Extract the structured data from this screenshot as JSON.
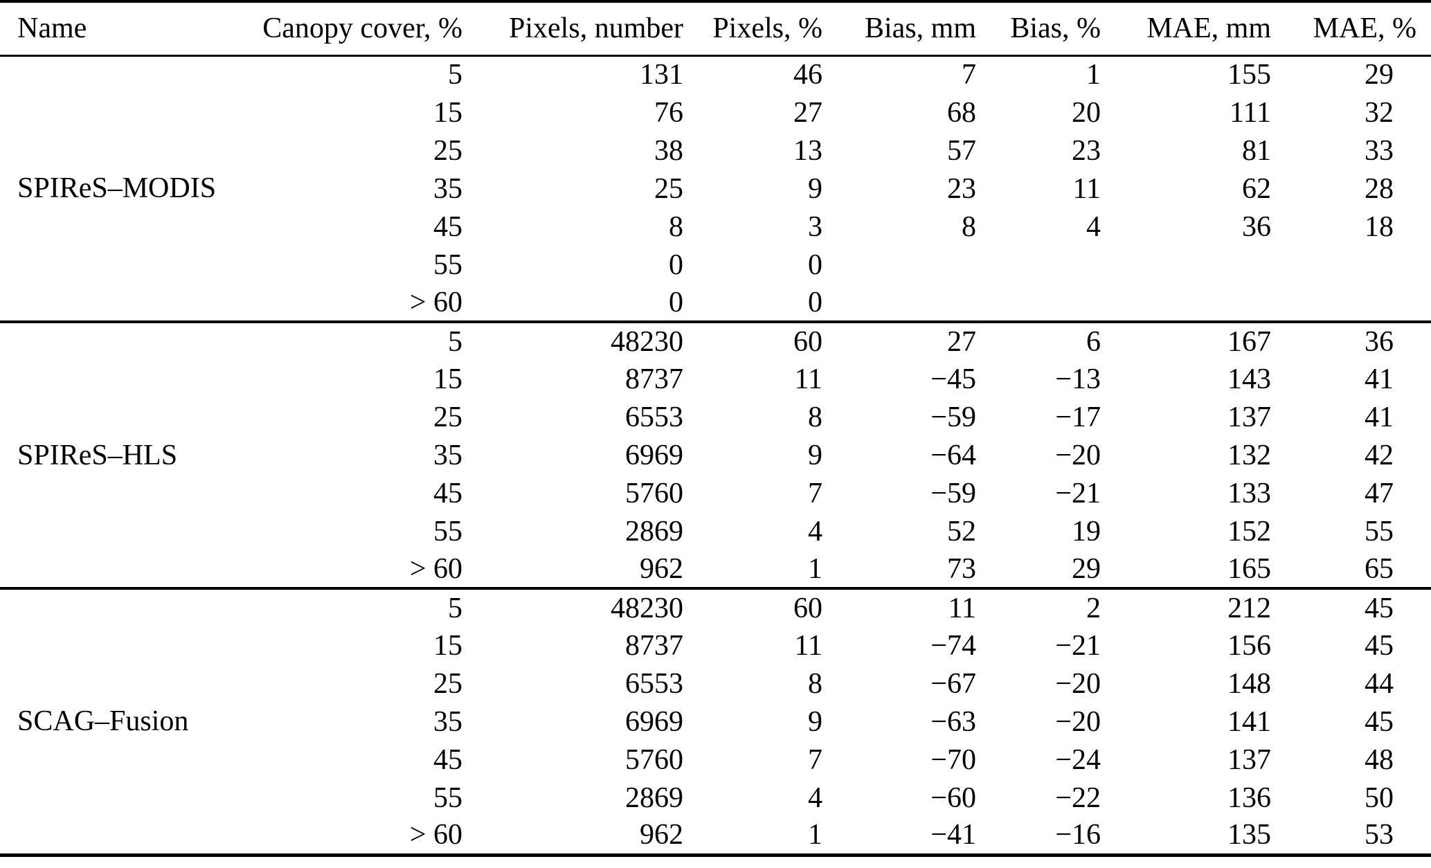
{
  "table": {
    "headers": [
      {
        "label": "Name"
      },
      {
        "label": "Canopy cover, %"
      },
      {
        "label": "Pixels, number"
      },
      {
        "label": "Pixels, %"
      },
      {
        "label": "Bias, mm"
      },
      {
        "label": "Bias, %"
      },
      {
        "label": "MAE, mm"
      },
      {
        "label": "MAE, %"
      }
    ],
    "groups": [
      {
        "name": "SPIReS–MODIS",
        "rows": [
          [
            "5",
            "131",
            "46",
            "7",
            "1",
            "155",
            "29"
          ],
          [
            "15",
            "76",
            "27",
            "68",
            "20",
            "111",
            "32"
          ],
          [
            "25",
            "38",
            "13",
            "57",
            "23",
            "81",
            "33"
          ],
          [
            "35",
            "25",
            "9",
            "23",
            "11",
            "62",
            "28"
          ],
          [
            "45",
            "8",
            "3",
            "8",
            "4",
            "36",
            "18"
          ],
          [
            "55",
            "0",
            "0",
            "",
            "",
            "",
            ""
          ],
          [
            "> 60",
            "0",
            "0",
            "",
            "",
            "",
            ""
          ]
        ]
      },
      {
        "name": "SPIReS–HLS",
        "rows": [
          [
            "5",
            "48230",
            "60",
            "27",
            "6",
            "167",
            "36"
          ],
          [
            "15",
            "8737",
            "11",
            "−45",
            "−13",
            "143",
            "41"
          ],
          [
            "25",
            "6553",
            "8",
            "−59",
            "−17",
            "137",
            "41"
          ],
          [
            "35",
            "6969",
            "9",
            "−64",
            "−20",
            "132",
            "42"
          ],
          [
            "45",
            "5760",
            "7",
            "−59",
            "−21",
            "133",
            "47"
          ],
          [
            "55",
            "2869",
            "4",
            "52",
            "19",
            "152",
            "55"
          ],
          [
            "> 60",
            "962",
            "1",
            "73",
            "29",
            "165",
            "65"
          ]
        ]
      },
      {
        "name": "SCAG–Fusion",
        "rows": [
          [
            "5",
            "48230",
            "60",
            "11",
            "2",
            "212",
            "45"
          ],
          [
            "15",
            "8737",
            "11",
            "−74",
            "−21",
            "156",
            "45"
          ],
          [
            "25",
            "6553",
            "8",
            "−67",
            "−20",
            "148",
            "44"
          ],
          [
            "35",
            "6969",
            "9",
            "−63",
            "−20",
            "141",
            "45"
          ],
          [
            "45",
            "5760",
            "7",
            "−70",
            "−24",
            "137",
            "48"
          ],
          [
            "55",
            "2869",
            "4",
            "−60",
            "−22",
            "136",
            "50"
          ],
          [
            "> 60",
            "962",
            "1",
            "−41",
            "−16",
            "135",
            "53"
          ]
        ]
      }
    ]
  },
  "colors": {
    "text": "#000000",
    "background": "#ffffff",
    "rule": "#000000"
  }
}
